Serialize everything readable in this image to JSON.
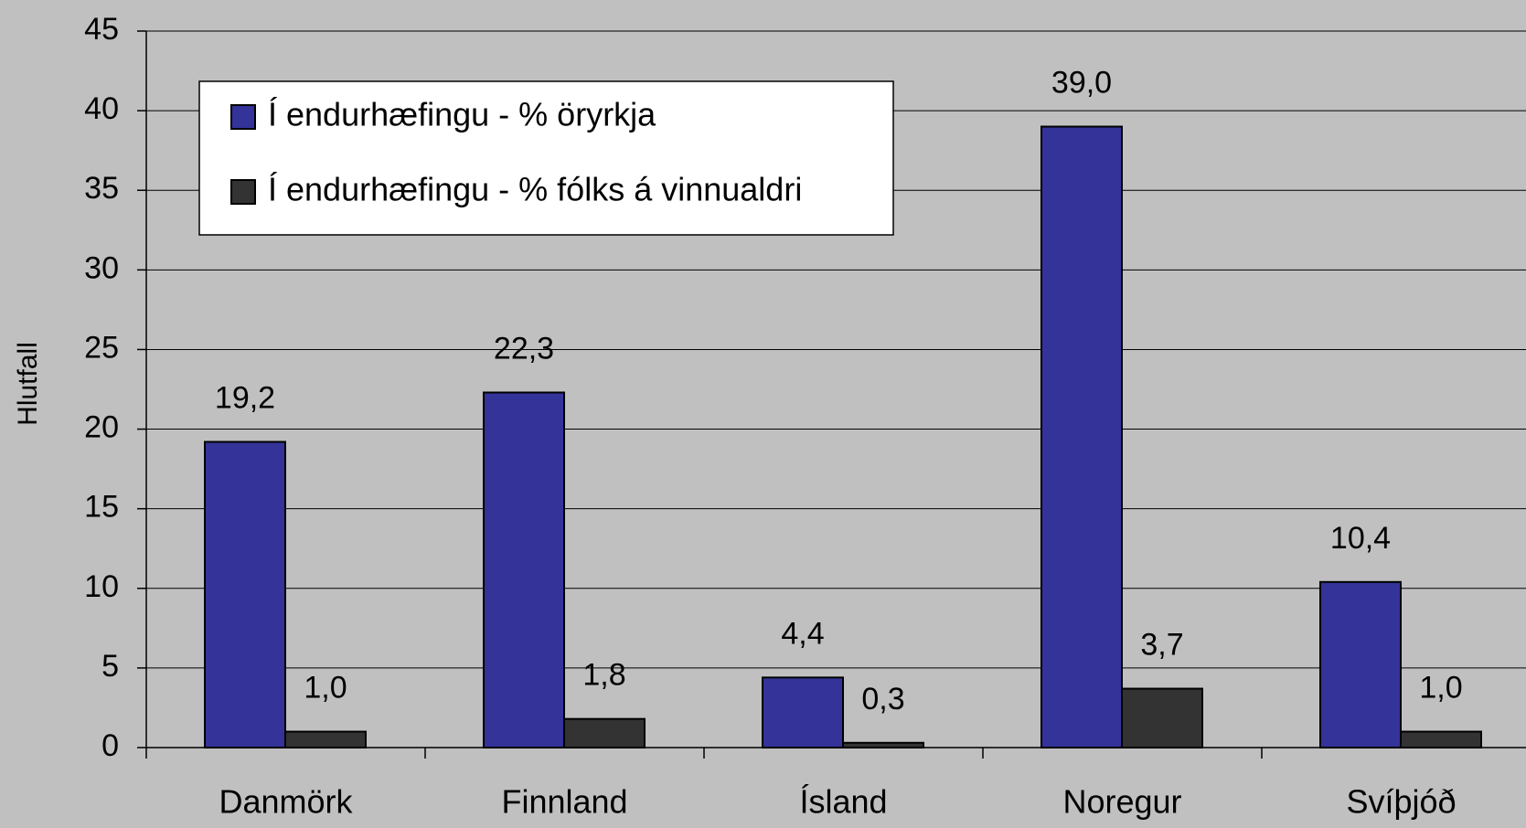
{
  "chart_data": {
    "type": "bar",
    "y_label": "Hlutfall",
    "categories": [
      "Danmörk",
      "Finnland",
      "Ísland",
      "Noregur",
      "Svíþjóð"
    ],
    "series": [
      {
        "name": "Í endurhæfingu - % öryrkja",
        "color": "#333399",
        "values": [
          19.2,
          22.3,
          4.4,
          39.0,
          10.4
        ],
        "value_labels": [
          "19,2",
          "22,3",
          "4,4",
          "39,0",
          "10,4"
        ]
      },
      {
        "name": "Í endurhæfingu - % fólks á vinnualdri",
        "color": "#333333",
        "values": [
          1.0,
          1.8,
          0.3,
          3.7,
          1.0
        ],
        "value_labels": [
          "1,0",
          "1,8",
          "0,3",
          "3,7",
          "1,0"
        ]
      }
    ],
    "ylim": [
      0,
      45
    ],
    "yticks": [
      0,
      5,
      10,
      15,
      20,
      25,
      30,
      35,
      40,
      45
    ],
    "grid": true,
    "legend": "upper left"
  }
}
